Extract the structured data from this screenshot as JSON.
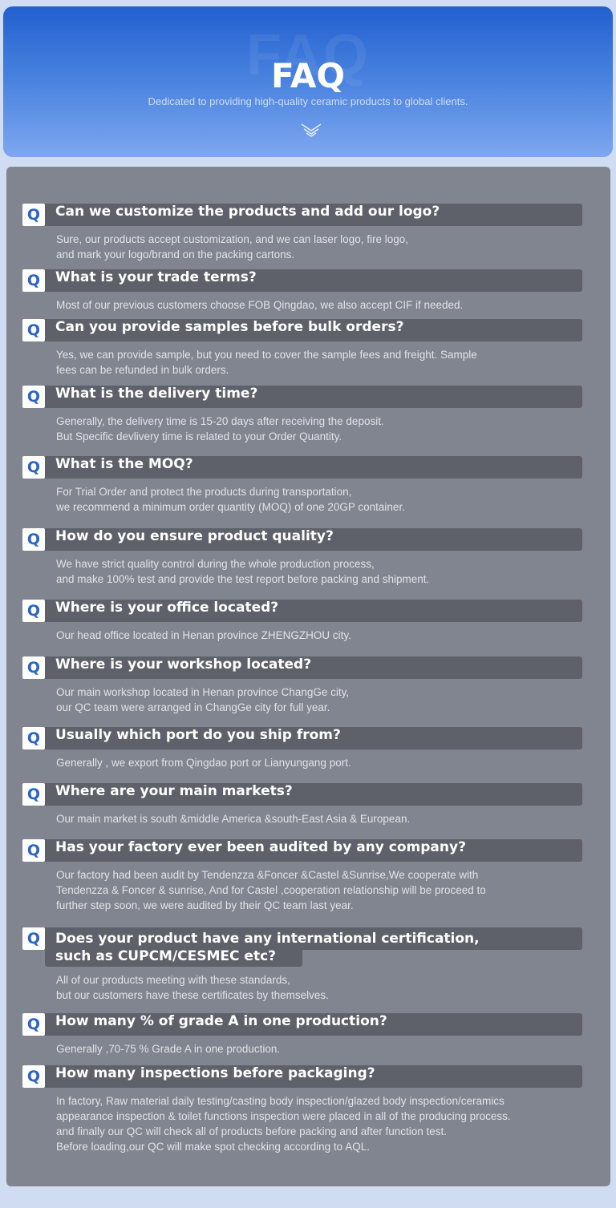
{
  "header": {
    "ghost": "FAQ",
    "title": "FAQ",
    "subtitle": "Dedicated to providing high-quality ceramic products to global clients.",
    "icon": "double-chevron-down-icon"
  },
  "q_label": "Q",
  "faqs": [
    {
      "q": "Can we customize the products and add our logo?",
      "a": "Sure, our products accept customization, and we can laser logo, fire logo,\nand mark your logo/brand on the packing cartons."
    },
    {
      "q": "What is your trade terms?",
      "a": "Most of our previous customers choose FOB Qingdao, we also accept CIF if needed."
    },
    {
      "q": "Can you provide samples before bulk orders?",
      "a": "Yes, we can provide sample, but you need to cover the sample fees and freight. Sample\nfees can be refunded in bulk orders."
    },
    {
      "q": "What is the delivery time?",
      "a": "Generally, the delivery time is 15-20 days after receiving the deposit.\nBut Specific devlivery time is related to your Order Quantity."
    },
    {
      "q": "What is the MOQ?",
      "a": "For Trial Order and protect the products during transportation,\nwe recommend a minimum order quantity (MOQ) of one 20GP container."
    },
    {
      "q": "How do you ensure product quality?",
      "a": "We have strict quality control during the whole production process,\nand make 100% test and provide the test report before packing and shipment."
    },
    {
      "q": "Where is your office located?",
      "a": "Our head office located in Henan province ZHENGZHOU city."
    },
    {
      "q": "Where is your workshop located?",
      "a": "Our main workshop located in Henan province ChangGe city,\nour QC team were arranged in ChangGe city for full year."
    },
    {
      "q": "Usually which port do you ship from?",
      "a": "Generally , we export from Qingdao port or Lianyungang port."
    },
    {
      "q": "Where are your main markets?",
      "a": "Our main market is south &middle America &south-East Asia & European."
    },
    {
      "q": "Has your factory ever been audited by any company?",
      "a": "Our factory had been audit by Tendenzza &Foncer &Castel &Sunrise,We cooperate with\nTendenzza & Foncer & sunrise, And for Castel ,cooperation relationship will be proceed to\nfurther step soon, we were audited by their QC team last year."
    },
    {
      "q": "Does your product have any international certification,\nsuch as CUPCM/CESMEC etc?",
      "a": "All of our products meeting with these standards,\nbut our customers have these certificates by themselves."
    },
    {
      "q": "How many % of grade A in one production?",
      "a": "Generally ,70-75 % Grade A in one production."
    },
    {
      "q": "How many inspections before packaging?",
      "a": "In factory, Raw material daily testing/casting body inspection/glazed body inspection/ceramics\nappearance inspection & toilet functions inspection were placed in all of the producing process.\nand finally our QC will check all of products before packing and after function test.\nBefore loading,our QC will make spot checking according to AQL."
    }
  ]
}
